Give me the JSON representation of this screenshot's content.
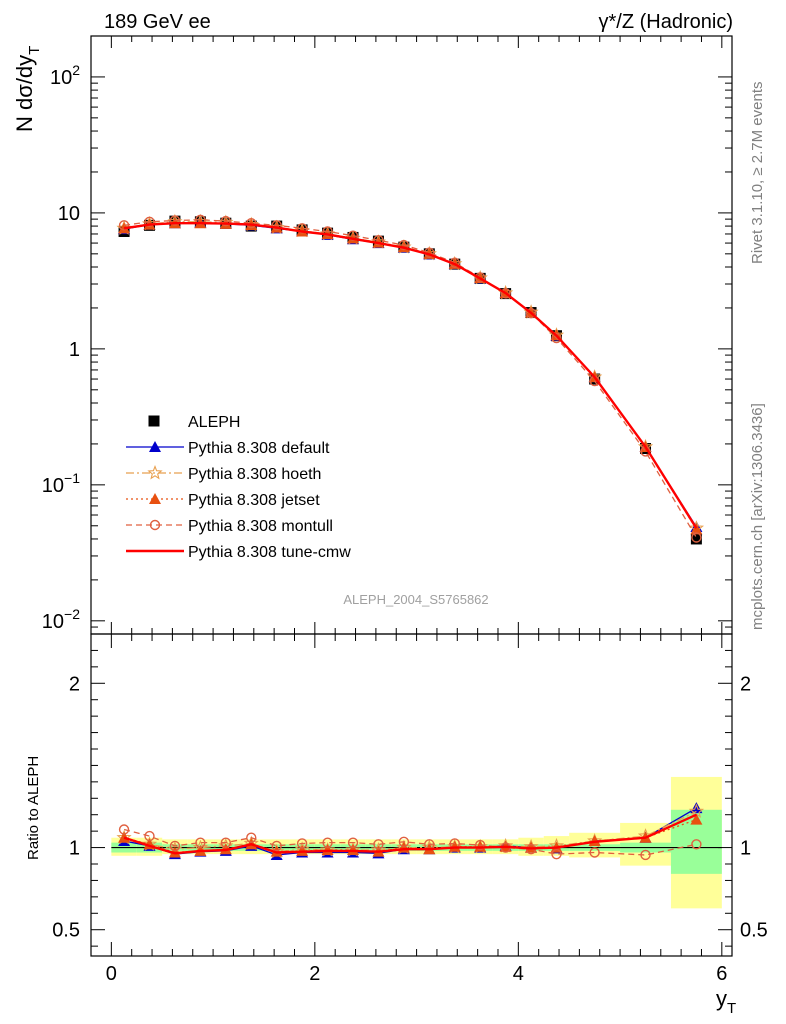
{
  "header": {
    "left": "189 GeV ee",
    "right": "γ*/Z (Hadronic)"
  },
  "side_labels": {
    "rivet": "Rivet 3.1.10, ≥ 2.7M events",
    "mcplots": "mcplots.cern.ch [arXiv:1306.3436]"
  },
  "analysis_id": "ALEPH_2004_S5765862",
  "colors": {
    "data": "#000000",
    "default": "#0000cc",
    "hoeth": "#e8a050",
    "jetset": "#e85010",
    "montull": "#e06040",
    "tune_cmw": "#ff0000",
    "band_inner": "#99ff99",
    "band_outer": "#ffff99"
  },
  "chart_data": [
    {
      "type": "line",
      "panel": "main",
      "ylabel": "N dσ/dy",
      "ylabel_sub": "T",
      "y_scale": "log",
      "ylim": [
        0.008,
        200
      ],
      "xlim": [
        -0.2,
        6.1
      ],
      "y_ticks": [
        {
          "value": 0.01,
          "base": "10",
          "exp": "−2"
        },
        {
          "value": 0.1,
          "base": "10",
          "exp": "−1"
        },
        {
          "value": 1,
          "base": "1",
          "exp": ""
        },
        {
          "value": 10,
          "base": "10",
          "exp": ""
        },
        {
          "value": 100,
          "base": "10",
          "exp": "2"
        }
      ],
      "legend_position": "left-middle",
      "x": [
        0.125,
        0.375,
        0.625,
        0.875,
        1.125,
        1.375,
        1.625,
        1.875,
        2.125,
        2.375,
        2.625,
        2.875,
        3.125,
        3.375,
        3.625,
        3.875,
        4.125,
        4.375,
        4.75,
        5.25,
        5.75
      ],
      "series": [
        {
          "name": "ALEPH",
          "key": "data",
          "marker": "square",
          "values": [
            7.3,
            8.1,
            8.7,
            8.6,
            8.4,
            8.0,
            8.0,
            7.5,
            7.1,
            6.6,
            6.2,
            5.6,
            5.0,
            4.2,
            3.3,
            2.55,
            1.85,
            1.25,
            0.6,
            0.185,
            0.04
          ]
        },
        {
          "name": "Pythia 8.308 default",
          "key": "default",
          "marker": "triangle",
          "dash": "",
          "values": [
            7.6,
            8.2,
            8.4,
            8.5,
            8.3,
            8.1,
            7.7,
            7.3,
            6.9,
            6.4,
            6.0,
            5.55,
            4.95,
            4.2,
            3.3,
            2.57,
            1.85,
            1.25,
            0.62,
            0.19,
            0.049
          ]
        },
        {
          "name": "Pythia 8.308 hoeth",
          "key": "hoeth",
          "marker": "star",
          "dash": "8 3 2 3",
          "values": [
            7.7,
            8.3,
            8.6,
            8.6,
            8.5,
            8.2,
            7.8,
            7.4,
            7.0,
            6.5,
            6.1,
            5.6,
            5.0,
            4.22,
            3.32,
            2.58,
            1.86,
            1.26,
            0.62,
            0.19,
            0.048
          ]
        },
        {
          "name": "Pythia 8.308 jetset",
          "key": "jetset",
          "marker": "triangle",
          "dash": "2 3",
          "values": [
            7.7,
            8.2,
            8.4,
            8.4,
            8.3,
            8.15,
            7.8,
            7.3,
            7.0,
            6.5,
            6.05,
            5.6,
            5.0,
            4.22,
            3.32,
            2.57,
            1.85,
            1.26,
            0.62,
            0.19,
            0.047
          ]
        },
        {
          "name": "Pythia 8.308 montull",
          "key": "montull",
          "marker": "circle",
          "dash": "6 4",
          "values": [
            8.1,
            8.6,
            8.8,
            8.9,
            8.7,
            8.4,
            8.1,
            7.7,
            7.3,
            6.8,
            6.3,
            5.8,
            5.1,
            4.3,
            3.35,
            2.56,
            1.83,
            1.2,
            0.58,
            0.176,
            0.041
          ]
        },
        {
          "name": "Pythia 8.308 tune-cmw",
          "key": "tune_cmw",
          "marker": "none",
          "dash": "",
          "values": [
            7.7,
            8.2,
            8.4,
            8.4,
            8.35,
            8.2,
            7.8,
            7.3,
            6.95,
            6.45,
            6.0,
            5.55,
            4.95,
            4.2,
            3.3,
            2.57,
            1.84,
            1.25,
            0.62,
            0.19,
            0.048
          ]
        }
      ]
    },
    {
      "type": "line",
      "panel": "ratio",
      "ylabel": "Ratio to ALEPH",
      "xlabel": "y",
      "xlabel_sub": "T",
      "ylim": [
        0.34,
        2.3
      ],
      "xlim": [
        -0.2,
        6.1
      ],
      "y_ticks": [
        0.5,
        1,
        2
      ],
      "x_ticks": [
        0,
        2,
        4,
        6
      ],
      "bin_edges": [
        0.0,
        0.25,
        0.5,
        0.75,
        1.0,
        1.25,
        1.5,
        1.75,
        2.0,
        2.25,
        2.5,
        2.75,
        3.0,
        3.25,
        3.5,
        3.75,
        4.0,
        4.25,
        4.5,
        5.0,
        5.5,
        6.0
      ],
      "band_inner": [
        [
          0.97,
          1.03
        ],
        [
          0.97,
          1.03
        ],
        [
          0.98,
          1.02
        ],
        [
          0.98,
          1.02
        ],
        [
          0.98,
          1.02
        ],
        [
          0.98,
          1.02
        ],
        [
          0.98,
          1.02
        ],
        [
          0.98,
          1.02
        ],
        [
          0.98,
          1.02
        ],
        [
          0.98,
          1.02
        ],
        [
          0.98,
          1.02
        ],
        [
          0.98,
          1.02
        ],
        [
          0.98,
          1.02
        ],
        [
          0.98,
          1.02
        ],
        [
          0.98,
          1.02
        ],
        [
          0.98,
          1.02
        ],
        [
          0.98,
          1.02
        ],
        [
          0.98,
          1.02
        ],
        [
          0.98,
          1.02
        ],
        [
          0.97,
          1.03
        ],
        [
          0.84,
          1.23
        ]
      ],
      "band_outer": [
        [
          0.95,
          1.06
        ],
        [
          0.95,
          1.06
        ],
        [
          0.96,
          1.05
        ],
        [
          0.96,
          1.05
        ],
        [
          0.96,
          1.05
        ],
        [
          0.96,
          1.05
        ],
        [
          0.96,
          1.05
        ],
        [
          0.96,
          1.05
        ],
        [
          0.96,
          1.05
        ],
        [
          0.96,
          1.05
        ],
        [
          0.96,
          1.05
        ],
        [
          0.96,
          1.05
        ],
        [
          0.96,
          1.05
        ],
        [
          0.96,
          1.05
        ],
        [
          0.96,
          1.05
        ],
        [
          0.96,
          1.05
        ],
        [
          0.95,
          1.06
        ],
        [
          0.95,
          1.07
        ],
        [
          0.94,
          1.09
        ],
        [
          0.89,
          1.15
        ],
        [
          0.63,
          1.43
        ]
      ],
      "series": [
        {
          "name": "Pythia 8.308 default",
          "key": "default",
          "marker": "triangle",
          "dash": "",
          "values": [
            1.04,
            1.01,
            0.96,
            0.975,
            0.98,
            1.01,
            0.955,
            0.97,
            0.97,
            0.97,
            0.965,
            0.99,
            0.99,
            1.0,
            1.0,
            1.01,
            1.0,
            0.995,
            1.04,
            1.06,
            1.24
          ]
        },
        {
          "name": "Pythia 8.308 hoeth",
          "key": "hoeth",
          "marker": "star",
          "dash": "8 3 2 3",
          "values": [
            1.06,
            1.02,
            0.99,
            1.0,
            1.01,
            1.025,
            0.975,
            0.99,
            0.985,
            0.985,
            0.985,
            1.0,
            1.0,
            1.005,
            1.005,
            1.01,
            1.005,
            1.01,
            1.04,
            1.07,
            1.22
          ]
        },
        {
          "name": "Pythia 8.308 jetset",
          "key": "jetset",
          "marker": "triangle",
          "dash": "2 3",
          "values": [
            1.06,
            1.02,
            0.97,
            0.98,
            0.99,
            1.02,
            0.975,
            0.98,
            0.985,
            0.985,
            0.975,
            1.0,
            0.99,
            1.005,
            1.005,
            1.005,
            1.0,
            1.0,
            1.04,
            1.06,
            1.17
          ]
        },
        {
          "name": "Pythia 8.308 montull",
          "key": "montull",
          "marker": "circle",
          "dash": "6 4",
          "values": [
            1.11,
            1.07,
            1.01,
            1.03,
            1.03,
            1.06,
            1.01,
            1.025,
            1.03,
            1.03,
            1.02,
            1.035,
            1.02,
            1.025,
            1.015,
            1.0,
            0.99,
            0.96,
            0.97,
            0.955,
            1.02
          ]
        },
        {
          "name": "Pythia 8.308 tune-cmw",
          "key": "tune_cmw",
          "marker": "none",
          "dash": "",
          "values": [
            1.06,
            1.01,
            0.965,
            0.98,
            0.985,
            1.02,
            0.97,
            0.975,
            0.98,
            0.98,
            0.975,
            0.99,
            0.99,
            1.0,
            1.0,
            1.005,
            0.995,
            1.0,
            1.035,
            1.06,
            1.2
          ]
        }
      ]
    }
  ]
}
